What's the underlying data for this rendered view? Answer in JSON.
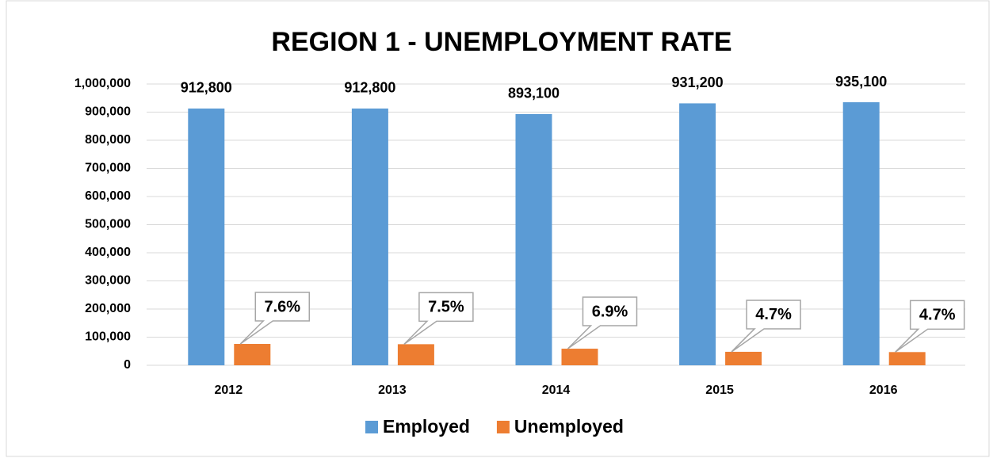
{
  "chart_data": {
    "type": "bar",
    "title": "REGION 1 - UNEMPLOYMENT RATE",
    "categories": [
      "2012",
      "2013",
      "2014",
      "2015",
      "2016"
    ],
    "series": [
      {
        "name": "Employed",
        "color": "#5b9bd5",
        "values": [
          912800,
          912800,
          893100,
          931200,
          935100
        ],
        "value_labels": [
          "912,800",
          "912,800",
          "893,100",
          "931,200",
          "935,100"
        ]
      },
      {
        "name": "Unemployed",
        "color": "#ed7d31",
        "values": [
          76000,
          75000,
          59000,
          48000,
          47000
        ]
      }
    ],
    "annotations": [
      "7.6%",
      "7.5%",
      "6.9%",
      "4.7%",
      "4.7%"
    ],
    "ylim": [
      0,
      1000000
    ],
    "yticks": [
      0,
      {
        "value": 100000,
        "label": "100,000"
      },
      {
        "value": 200000,
        "label": "200,000"
      },
      {
        "value": 300000,
        "label": "300,000"
      },
      {
        "value": 400000,
        "label": "400,000"
      },
      {
        "value": 500000,
        "label": "500,000"
      },
      {
        "value": 600000,
        "label": "600,000"
      },
      {
        "value": 700000,
        "label": "700,000"
      },
      {
        "value": 800000,
        "label": "800,000"
      },
      {
        "value": 900000,
        "label": "900,000"
      },
      {
        "value": 1000000,
        "label": "1,000,000"
      }
    ],
    "grid": true,
    "legend": "bottom"
  }
}
